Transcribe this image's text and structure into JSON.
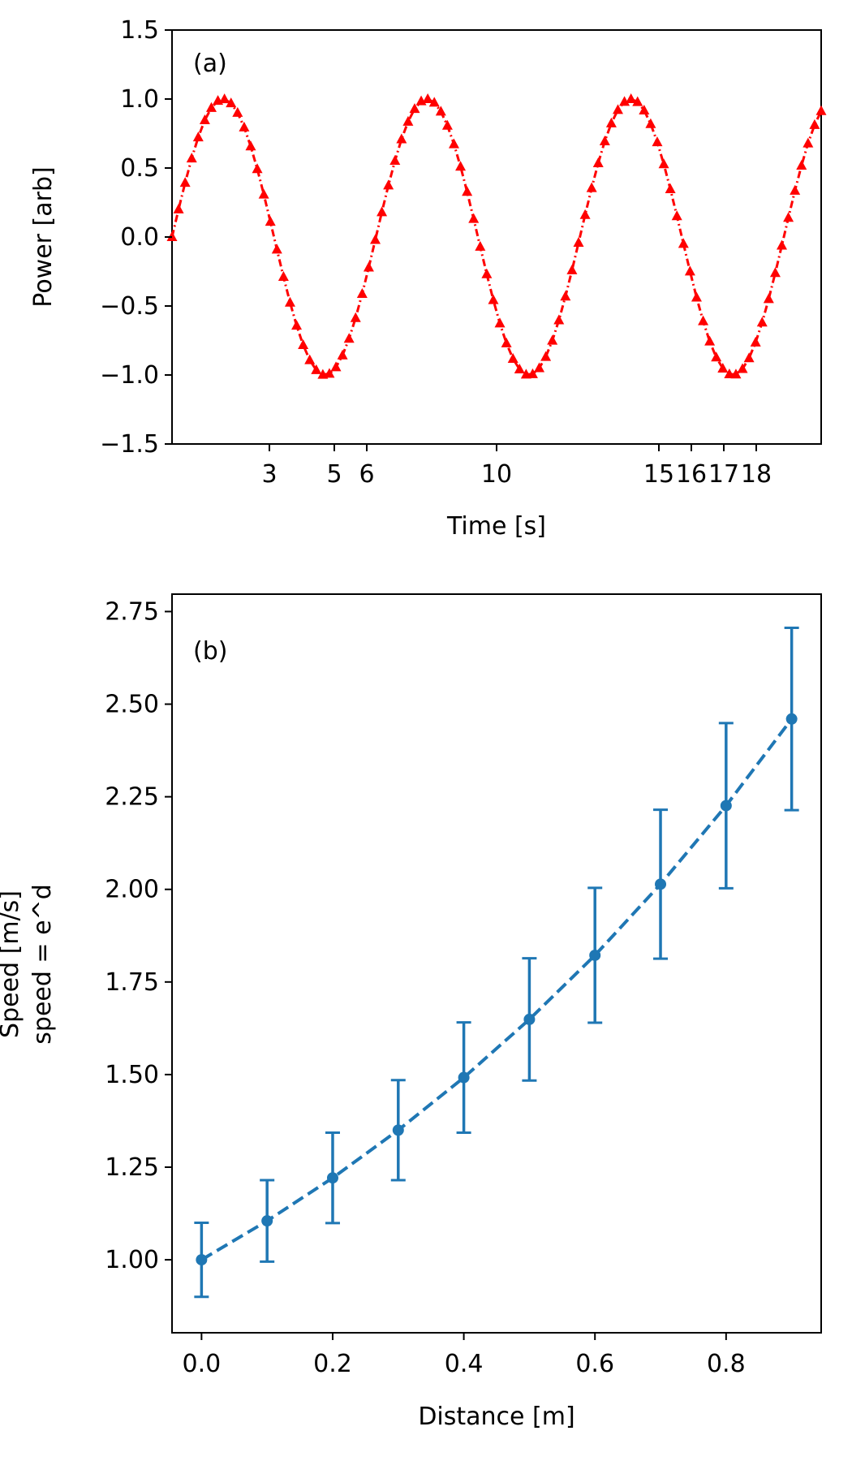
{
  "chart_data": [
    {
      "type": "line",
      "panel_label": "(a)",
      "xlabel": "Time [s]",
      "ylabel": "Power [arb]",
      "xlim": [
        0,
        20
      ],
      "ylim": [
        -1.5,
        1.5
      ],
      "xticks": [
        3,
        5,
        6,
        10,
        15,
        16,
        17,
        18
      ],
      "xtick_labels": [
        "3",
        "5",
        "6",
        "10",
        "15",
        "16",
        "17",
        "18"
      ],
      "yticks": [
        -1.5,
        -1.0,
        -0.5,
        0.0,
        0.5,
        1.0,
        1.5
      ],
      "ytick_labels": [
        "−1.5",
        "−1.0",
        "−0.5",
        "0.0",
        "0.5",
        "1.0",
        "1.5"
      ],
      "series": [
        {
          "name": "sin(t)",
          "function": "sin",
          "x_start": 0,
          "x_end": 20,
          "num_points": 100,
          "marker": "triangle",
          "linestyle": "dashdot",
          "color": "#ff0000"
        }
      ],
      "grid": false
    },
    {
      "type": "line",
      "panel_label": "(b)",
      "xlabel": "Distance [m]",
      "ylabel_lines": [
        "Speed [m/s]",
        "speed = e^d"
      ],
      "xlim": [
        -0.045,
        0.945
      ],
      "ylim": [
        0.803,
        2.797
      ],
      "xticks": [
        0.0,
        0.2,
        0.4,
        0.6,
        0.8
      ],
      "xtick_labels": [
        "0.0",
        "0.2",
        "0.4",
        "0.6",
        "0.8"
      ],
      "yticks": [
        1.0,
        1.25,
        1.5,
        1.75,
        2.0,
        2.25,
        2.5,
        2.75
      ],
      "ytick_labels": [
        "1.00",
        "1.25",
        "1.50",
        "1.75",
        "2.00",
        "2.25",
        "2.50",
        "2.75"
      ],
      "series": [
        {
          "name": "speed",
          "x": [
            0.0,
            0.1,
            0.2,
            0.3,
            0.4,
            0.5,
            0.6,
            0.7,
            0.8,
            0.9
          ],
          "y": [
            1.0,
            1.105,
            1.221,
            1.35,
            1.492,
            1.649,
            1.822,
            2.014,
            2.226,
            2.46
          ],
          "yerr": [
            0.1,
            0.11,
            0.122,
            0.135,
            0.149,
            0.165,
            0.182,
            0.201,
            0.223,
            0.246
          ],
          "marker": "circle",
          "linestyle": "dashed",
          "color": "#1f77b4"
        }
      ],
      "grid": false
    }
  ]
}
